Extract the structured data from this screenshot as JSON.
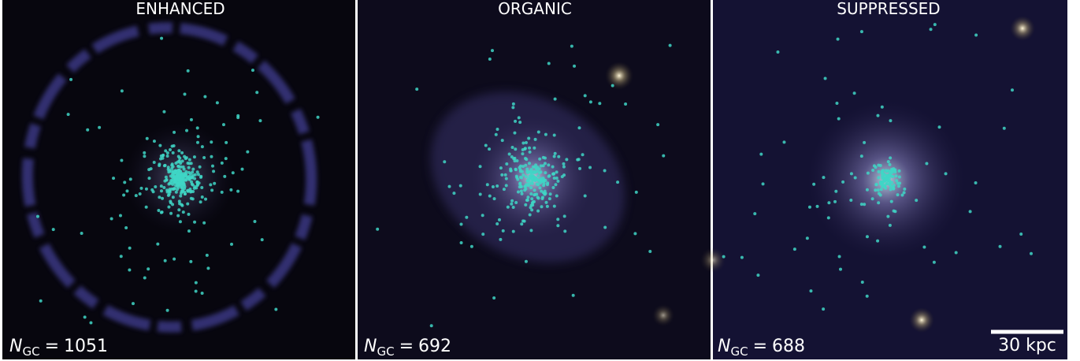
{
  "panels": [
    {
      "title": "ENHANCED",
      "count_label": {
        "symbol": "N",
        "subscript": "GC",
        "relation": "=",
        "value": 1051
      }
    },
    {
      "title": "ORGANIC",
      "count_label": {
        "symbol": "N",
        "subscript": "GC",
        "relation": "=",
        "value": 692
      }
    },
    {
      "title": "SUPPRESSED",
      "count_label": {
        "symbol": "N",
        "subscript": "GC",
        "relation": "=",
        "value": 688
      }
    }
  ],
  "scale_bar": {
    "label": "30 kpc"
  }
}
